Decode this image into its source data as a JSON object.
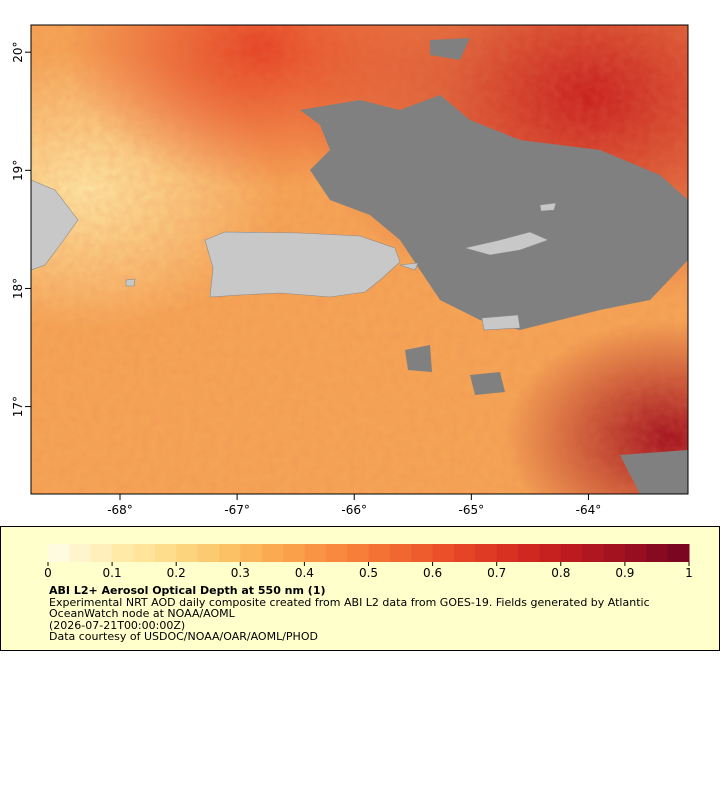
{
  "map": {
    "lon_ticks": [
      {
        "value": -68,
        "label": "-68°"
      },
      {
        "value": -67,
        "label": "-67°"
      },
      {
        "value": -66,
        "label": "-66°"
      },
      {
        "value": -65,
        "label": "-65°"
      },
      {
        "value": -64,
        "label": "-64°"
      }
    ],
    "lat_ticks": [
      {
        "value": 20,
        "label": "20°"
      },
      {
        "value": 19,
        "label": "19°"
      },
      {
        "value": 18,
        "label": "18°"
      },
      {
        "value": 17,
        "label": "17°"
      }
    ],
    "xlim": [
      -68.76,
      -63.15
    ],
    "ylim": [
      16.26,
      20.23
    ]
  },
  "colorbar": {
    "lim": [
      0,
      1
    ],
    "ticks": [
      0,
      0.1,
      0.2,
      0.3,
      0.4,
      0.5,
      0.6,
      0.7,
      0.8,
      0.9,
      1
    ],
    "colors": [
      "#fffbe0",
      "#fff5cc",
      "#fff0bb",
      "#ffeaa8",
      "#ffe49a",
      "#fede8c",
      "#fdd47e",
      "#fcca70",
      "#fcc065",
      "#fbb55b",
      "#fbaa52",
      "#fa9f4a",
      "#f99444",
      "#f8893e",
      "#f67e39",
      "#f47234",
      "#f16730",
      "#ee5b2c",
      "#ea4f29",
      "#e54426",
      "#df3a24",
      "#d83122",
      "#d02820",
      "#c6211f",
      "#bb1b1f",
      "#b0161f",
      "#a3121f",
      "#960e20",
      "#880a20",
      "#7a0621"
    ]
  },
  "legend": {
    "title": "ABI L2+ Aerosol Optical Depth at 550 nm (1)",
    "description": "Experimental NRT AOD daily composite created from ABI L2 data from GOES-19. Fields generated by Atlantic OceanWatch node at NOAA/AOML",
    "time": "(2026-07-21T00:00:00Z)",
    "credit": "Data courtesy of USDOC/NOAA/OAR/AOML/PHOD"
  }
}
